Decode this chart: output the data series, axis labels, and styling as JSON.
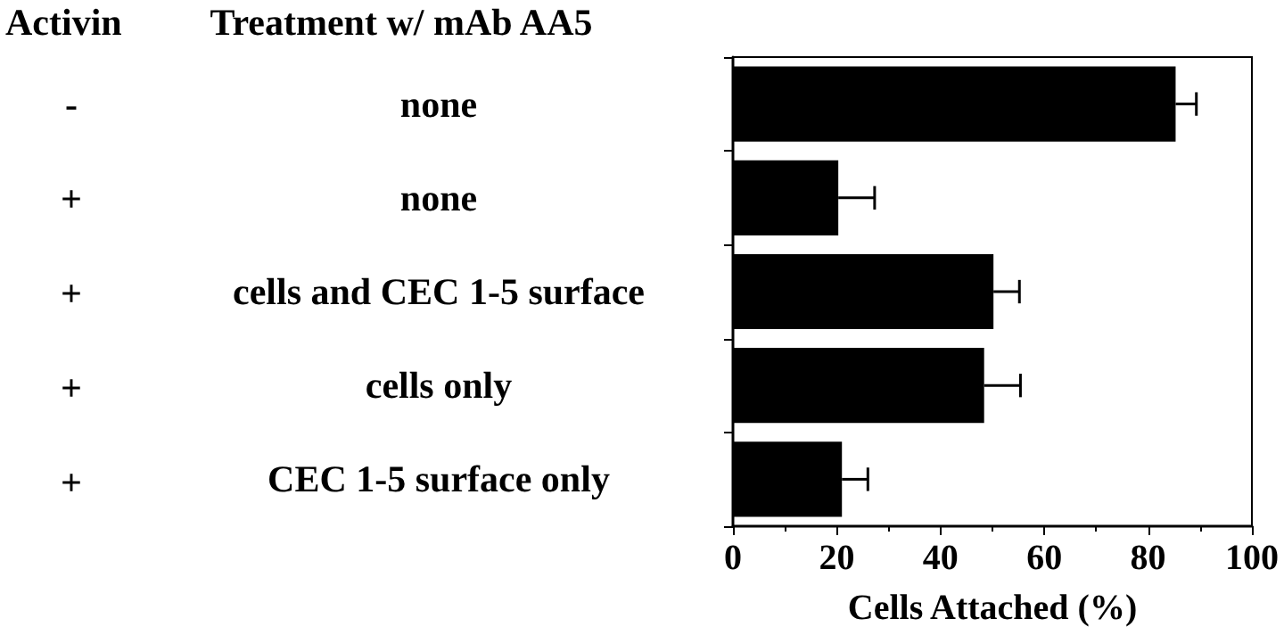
{
  "chart_data": {
    "type": "bar",
    "orientation": "horizontal",
    "ylabel": "Treatment w/ mAb AA5",
    "xlabel": "Cells Attached (%)",
    "categories": [
      "none",
      "none",
      "cells and CEC 1-5 surface",
      "cells only",
      "CEC 1-5 surface only"
    ],
    "values": [
      85.3,
      20.3,
      50.2,
      48.4,
      21.0
    ],
    "errors": [
      4,
      7,
      5,
      7,
      5
    ],
    "color": "#000000",
    "xlim": [
      0,
      100
    ],
    "xticks": [
      0,
      20,
      40,
      60,
      80,
      100
    ],
    "grid": false,
    "annotations": [
      "Activin",
      "-",
      "+",
      "+",
      "+",
      "+"
    ]
  }
}
